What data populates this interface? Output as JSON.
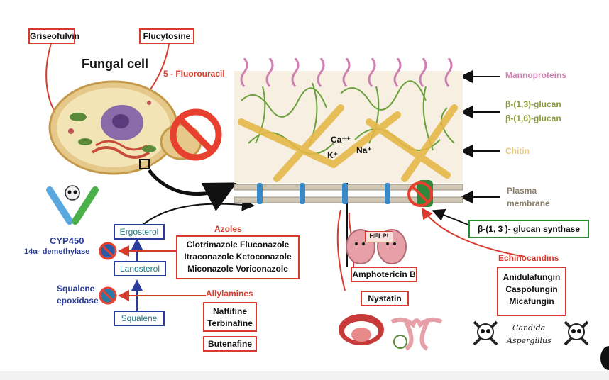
{
  "title": "Fungal cell",
  "top_boxes": {
    "griseofulvin": "Griseofulvin",
    "flucytosine": "Flucytosine",
    "fluorouracil": "5 - Fluorouracil"
  },
  "ions": {
    "ca": "Ca⁺⁺",
    "k": "K⁺",
    "na": "Na⁺"
  },
  "wall_labels": {
    "mannoproteins": "Mannoproteins",
    "glucan13": "β-(1,3)-glucan",
    "glucan16": "β-(1,6)-glucan",
    "chitin": "Chitin",
    "plasma1": "Plasma",
    "plasma2": "membrane",
    "synthase": "β-(1, 3 )- glucan synthase"
  },
  "enzymes": {
    "cyp1": "CYP450",
    "cyp2": "14α- demethylase",
    "sq1": "Squalene",
    "sq2": "epoxidase"
  },
  "pathway": {
    "ergosterol": "Ergosterol",
    "lanosterol": "Lanosterol",
    "squalene": "Squalene"
  },
  "azoles": {
    "header": "Azoles",
    "line1": "Clotrimazole  Fluconazole",
    "line2": "Itraconazole  Ketoconazole",
    "line3": "Miconazole  Voriconazole"
  },
  "allylamines": {
    "header": "Allylamines",
    "line1": "Naftifine",
    "line2": "Terbinafine",
    "butenafine": "Butenafine"
  },
  "polyenes": {
    "amphotericin": "Amphotericin B",
    "nystatin": "Nystatin",
    "help": "HELP!"
  },
  "echinocandins": {
    "header": "Echinocandins",
    "line1": "Anidulafungin",
    "line2": "Caspofungin",
    "line3": "Micafungin"
  },
  "organisms": {
    "candida": "Candida",
    "aspergillus": "Aspergillus"
  },
  "colors": {
    "red": "#d83a2e",
    "blue": "#2a3c9c",
    "green": "#2e8a2e",
    "pink": "#d07fb2",
    "olive": "#8a9a38",
    "tan": "#e8c98a"
  }
}
